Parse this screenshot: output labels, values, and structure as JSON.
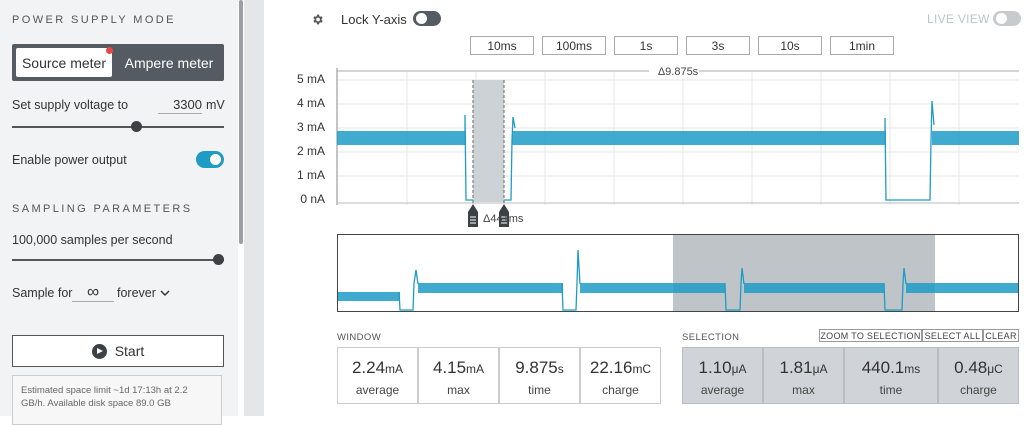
{
  "sidebar": {
    "power_title": "POWER SUPPLY MODE",
    "mode_source": "Source meter",
    "mode_ampere": "Ampere meter",
    "supply_label": "Set supply voltage to",
    "supply_value": "3300",
    "supply_unit": "mV",
    "supply_level": 0.6,
    "enable_label": "Enable power output",
    "enable_on": true,
    "sampling_title": "SAMPLING PARAMETERS",
    "rate_label": "100,000 samples per second",
    "rate_level": 1.0,
    "sample_for_label": "Sample for",
    "sample_for_value": "∞",
    "forever_label": "forever",
    "start_label": "Start",
    "info_text": "Estimated space limit ~1d 17:13h at 2.2 GB/h. Available disk space 89.0 GB"
  },
  "toolbar": {
    "lock_label": "Lock Y-axis",
    "live_label": "LIVE VIEW",
    "windows": [
      "10ms",
      "100ms",
      "1s",
      "3s",
      "10s",
      "1min"
    ]
  },
  "chart": {
    "delta_label": "Δ9.875s",
    "cursor_label": "Δ441ms",
    "y_ticks": [
      "5 mA",
      "4 mA",
      "3 mA",
      "2 mA",
      "1 mA",
      "0 nA"
    ],
    "trace_color": "#1e9cc5"
  },
  "window_stats": {
    "title": "WINDOW",
    "items": [
      {
        "value": "2.24",
        "unit": "mA",
        "label": "average"
      },
      {
        "value": "4.15",
        "unit": "mA",
        "label": "max"
      },
      {
        "value": "9.875",
        "unit": "s",
        "label": "time"
      },
      {
        "value": "22.16",
        "unit": "mC",
        "label": "charge"
      }
    ]
  },
  "selection_stats": {
    "title": "SELECTION",
    "zoom_label": "ZOOM TO SELECTION",
    "select_all_label": "SELECT ALL",
    "clear_label": "CLEAR",
    "items": [
      {
        "value": "1.10",
        "unit": "μA",
        "label": "average"
      },
      {
        "value": "1.81",
        "unit": "μA",
        "label": "max"
      },
      {
        "value": "440.1",
        "unit": "ms",
        "label": "time"
      },
      {
        "value": "0.48",
        "unit": "μC",
        "label": "charge"
      }
    ]
  }
}
